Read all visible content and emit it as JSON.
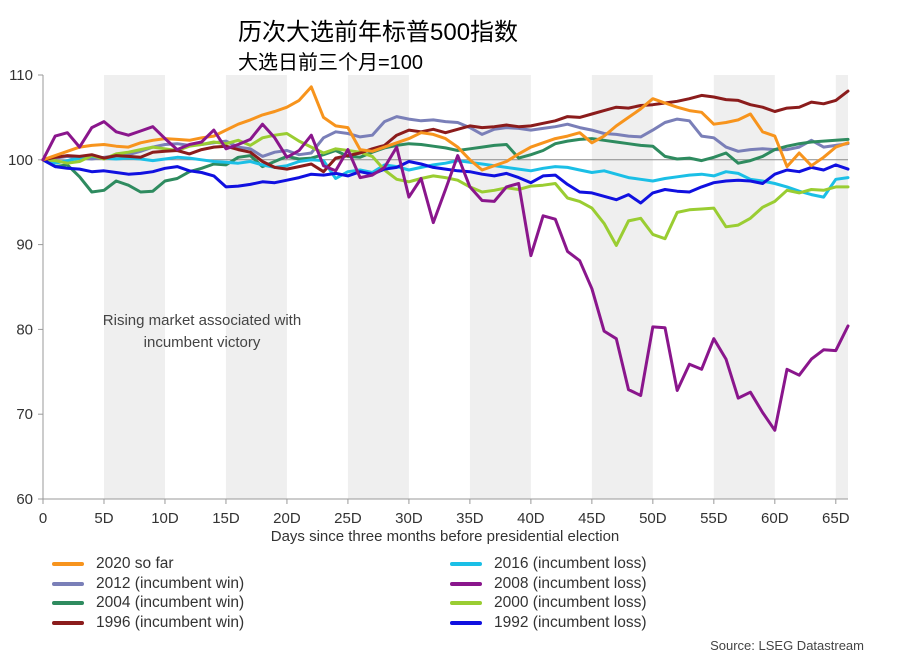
{
  "header": {
    "title": "历次大选前年标普500指数",
    "subtitle": "大选日前三个月=100"
  },
  "source": "Source: LSEG Datastream",
  "chart_data": {
    "type": "line",
    "title": "历次大选前年标普500指数",
    "subtitle": "大选日前三个月=100",
    "xlabel": "Days since three months before presidential election",
    "ylabel": "",
    "xlim": [
      0,
      66
    ],
    "ylim": [
      60,
      110
    ],
    "x_ticks": [
      {
        "value": 0,
        "label": "0"
      },
      {
        "value": 5,
        "label": "5D"
      },
      {
        "value": 10,
        "label": "10D"
      },
      {
        "value": 15,
        "label": "15D"
      },
      {
        "value": 20,
        "label": "20D"
      },
      {
        "value": 25,
        "label": "25D"
      },
      {
        "value": 30,
        "label": "30D"
      },
      {
        "value": 35,
        "label": "35D"
      },
      {
        "value": 40,
        "label": "40D"
      },
      {
        "value": 45,
        "label": "45D"
      },
      {
        "value": 50,
        "label": "50D"
      },
      {
        "value": 55,
        "label": "55D"
      },
      {
        "value": 60,
        "label": "60D"
      },
      {
        "value": 65,
        "label": "65D"
      }
    ],
    "y_ticks": [
      {
        "value": 60,
        "label": "60"
      },
      {
        "value": 70,
        "label": "70"
      },
      {
        "value": 80,
        "label": "80"
      },
      {
        "value": 90,
        "label": "90"
      },
      {
        "value": 100,
        "label": "100"
      },
      {
        "value": 110,
        "label": "110"
      }
    ],
    "shaded_bands": [
      [
        5,
        10
      ],
      [
        15,
        20
      ],
      [
        25,
        30
      ],
      [
        35,
        40
      ],
      [
        45,
        50
      ],
      [
        55,
        60
      ],
      [
        65,
        66
      ]
    ],
    "reference_line": 100,
    "annotation": [
      "Rising market associated with",
      "incumbent victory"
    ],
    "series": [
      {
        "name": "2020 so far",
        "color": "#f7941d",
        "values": [
          100,
          100.5,
          101,
          101.5,
          101.7,
          101.8,
          101.6,
          101.5,
          102,
          102.3,
          102.5,
          102.4,
          102.3,
          102.6,
          102.8,
          103.5,
          104.2,
          104.7,
          105.3,
          105.7,
          106.2,
          107,
          108.6,
          105,
          104,
          103.8,
          101.2,
          101,
          101.5,
          102,
          102.5,
          103.2,
          103,
          102.5,
          101.5,
          100,
          98.8,
          99.3,
          99.8,
          100.7,
          101.5,
          102,
          102.5,
          102.8,
          103.2,
          102,
          102.8,
          104,
          105,
          106,
          107.2,
          106.7,
          106.2,
          105.8,
          105.6,
          104.2,
          104.4,
          104.7,
          105.4,
          103.3,
          102.8,
          99.2,
          100.8,
          99.3,
          100.3,
          101.5,
          102
        ]
      },
      {
        "name": "2012 (incumbent win)",
        "color": "#7a7fb8",
        "values": [
          100,
          100.2,
          100.4,
          100.2,
          100.1,
          100.3,
          100.5,
          100.6,
          101,
          101.5,
          101.8,
          101.9,
          101.7,
          101.8,
          102,
          102.2,
          101.5,
          101.3,
          100.4,
          100.9,
          101.1,
          100.6,
          100.8,
          102.6,
          103.3,
          103.1,
          102.7,
          102.9,
          104.5,
          105.1,
          104.8,
          104.6,
          104.7,
          104.5,
          104.4,
          103.8,
          103,
          103.6,
          103.8,
          103.7,
          103.5,
          103.7,
          103.9,
          104.2,
          103.8,
          103.5,
          103.1,
          103,
          102.8,
          102.7,
          103.5,
          104.4,
          104.8,
          104.6,
          102.8,
          102.6,
          101.5,
          101,
          101.2,
          101.3,
          101.2,
          101.2,
          101.5,
          102.3,
          101.5,
          101.7,
          101.9
        ]
      },
      {
        "name": "2004 (incumbent win)",
        "color": "#2e8b5f",
        "values": [
          100,
          99.2,
          99.4,
          98,
          96.2,
          96.4,
          97.5,
          97,
          96.2,
          96.3,
          97.5,
          97.8,
          98.6,
          99,
          99.5,
          99.4,
          100.3,
          100.5,
          99.2,
          99.8,
          100.4,
          100.1,
          100.2,
          100.6,
          101.1,
          100.4,
          100.3,
          100.9,
          101.4,
          101.7,
          101.9,
          101.8,
          101.6,
          101.4,
          101.1,
          101.3,
          101.5,
          101.7,
          101.8,
          100.2,
          100.6,
          101.1,
          101.9,
          102.2,
          102.4,
          102.5,
          102.3,
          102.1,
          101.9,
          101.7,
          101.6,
          100.4,
          100.1,
          100.2,
          99.9,
          100.3,
          100.8,
          99.6,
          99.9,
          100.4,
          101.2,
          101.6,
          101.9,
          102.1,
          102.2,
          102.3,
          102.4
        ]
      },
      {
        "name": "1996 (incumbent win)",
        "color": "#8b1c1c",
        "values": [
          100,
          100.3,
          100.5,
          100.4,
          100.6,
          100.2,
          100.5,
          100.4,
          100.3,
          100.9,
          101,
          101.1,
          100.7,
          101.2,
          101.5,
          101.6,
          101.2,
          100.9,
          99.8,
          99.1,
          98.9,
          99.2,
          99.5,
          98.6,
          100.2,
          100.5,
          100.8,
          101.3,
          101.7,
          102.9,
          103.5,
          103.3,
          103.6,
          103.2,
          103.6,
          104,
          103.8,
          103.9,
          104.1,
          103.9,
          104,
          104.3,
          104.6,
          105.1,
          105,
          105.4,
          105.8,
          106.2,
          106.1,
          106.4,
          106.5,
          106.7,
          106.9,
          107.2,
          107.6,
          107.4,
          107.1,
          107,
          106.5,
          106.2,
          105.7,
          106.1,
          106.2,
          106.8,
          106.6,
          107,
          108.1
        ]
      },
      {
        "name": "2016 (incumbent loss)",
        "color": "#1bbfe6",
        "values": [
          100,
          99.6,
          99.9,
          100.2,
          100.4,
          100.2,
          100.1,
          100.2,
          100.1,
          99.9,
          100.1,
          100.3,
          100.2,
          100,
          99.8,
          99.7,
          99.6,
          99.8,
          99.4,
          99.1,
          99.3,
          99.8,
          100,
          99.9,
          97.8,
          98.6,
          98.8,
          98.5,
          99.4,
          99.2,
          98.8,
          99.1,
          99.4,
          99.6,
          99.9,
          99.7,
          99.5,
          99.3,
          99.1,
          98.9,
          98.7,
          99,
          99.2,
          99.1,
          98.8,
          98.5,
          98.7,
          98.3,
          97.9,
          97.7,
          97.5,
          97.8,
          98,
          98.2,
          98.3,
          98.1,
          98.6,
          98.4,
          97.7,
          97.5,
          97.2,
          96.8,
          96.3,
          95.9,
          95.6,
          97.7,
          97.9
        ]
      },
      {
        "name": "2008 (incumbent loss)",
        "color": "#8a168c",
        "values": [
          100,
          102.8,
          103.2,
          101.5,
          103.8,
          104.5,
          103.3,
          102.9,
          103.4,
          103.9,
          102.5,
          101.2,
          101.8,
          102.1,
          103.5,
          101.3,
          101.8,
          102.4,
          104.2,
          102.6,
          100.3,
          101.1,
          102.9,
          99.3,
          98.7,
          101.2,
          97.9,
          98.2,
          99.1,
          101.5,
          95.6,
          97.8,
          92.6,
          96.5,
          100.5,
          96.8,
          95.2,
          95.1,
          96.8,
          97.2,
          88.7,
          93.4,
          93,
          89.2,
          88.1,
          84.8,
          79.8,
          78.9,
          72.9,
          72.2,
          80.3,
          80.2,
          72.8,
          75.9,
          75.3,
          78.9,
          76.5,
          71.9,
          72.6,
          70.2,
          68.1,
          75.3,
          74.6,
          76.5,
          77.6,
          77.5,
          80.4
        ]
      },
      {
        "name": "2000 (incumbent loss)",
        "color": "#9acd32",
        "values": [
          100,
          99.9,
          99.6,
          99.8,
          100.5,
          100.1,
          100.7,
          100.9,
          101.2,
          101.5,
          101.3,
          101.1,
          101.6,
          101.8,
          102.1,
          101.9,
          102.3,
          101.7,
          102.6,
          102.9,
          103.1,
          102.2,
          101.5,
          100.8,
          101.3,
          101.1,
          100.9,
          100.4,
          98.8,
          97.7,
          97.4,
          97.8,
          98.1,
          97.9,
          97.6,
          96.8,
          96.2,
          96.4,
          96.7,
          96.5,
          96.9,
          97,
          97.2,
          95.5,
          95.1,
          94.3,
          92.5,
          89.9,
          92.8,
          93.1,
          91.2,
          90.7,
          93.8,
          94.1,
          94.2,
          94.3,
          92.1,
          92.3,
          93.1,
          94.4,
          95.1,
          96.4,
          96.1,
          96.5,
          96.4,
          96.8,
          96.8
        ]
      },
      {
        "name": "1992 (incumbent loss)",
        "color": "#1010e0",
        "values": [
          100,
          99.2,
          99,
          98.9,
          98.6,
          98.7,
          98.5,
          98.3,
          98.4,
          98.6,
          99,
          99.2,
          98.7,
          98.5,
          98.1,
          96.8,
          96.9,
          97.1,
          97.4,
          97.3,
          97.6,
          97.9,
          98.3,
          98.2,
          98.4,
          98.1,
          98.6,
          98.3,
          98.9,
          99.1,
          99.8,
          99.5,
          99.1,
          98.9,
          98.7,
          98.6,
          98.3,
          98.1,
          98.4,
          97.9,
          97.3,
          98.1,
          98.2,
          97.1,
          96.2,
          96.1,
          95.7,
          95.3,
          95.9,
          94.9,
          96.1,
          96.5,
          96.3,
          96.2,
          96.8,
          97.3,
          97.5,
          97.6,
          97.5,
          97.2,
          98.3,
          98.8,
          98.6,
          99.1,
          98.8,
          99.4,
          98.9
        ]
      }
    ]
  }
}
